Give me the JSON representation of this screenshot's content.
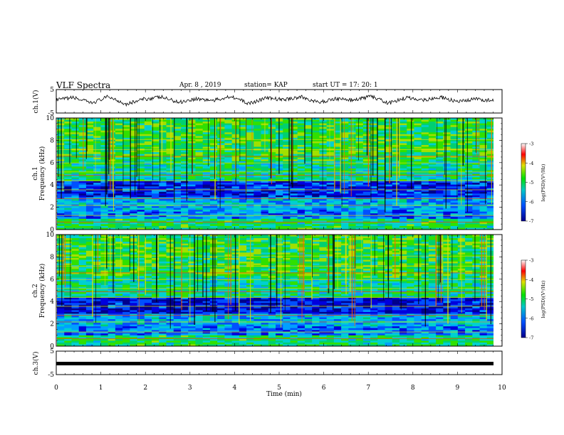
{
  "header": {
    "title": "VLF Spectra",
    "date": "Apr. 8 , 2019",
    "station": "station= KAP",
    "start": "start UT = 17: 20: 1"
  },
  "chart_data": [
    {
      "type": "line",
      "panel": "ch1-waveform",
      "ylabel": "ch.1(V)",
      "ylim": [
        -5,
        5
      ],
      "yticks": [
        "5",
        "-5"
      ],
      "xlim": [
        0,
        10
      ],
      "series": [
        {
          "values": [
            0.5,
            1.6,
            -0.8,
            2.0,
            -1.2,
            0.9,
            1.8,
            -0.4,
            1.1,
            0.3,
            2.2,
            -1.0,
            1.4,
            0.7,
            1.9,
            -0.6,
            1.2,
            0.4,
            2.1,
            -0.9,
            1.5,
            0.6,
            1.7,
            -0.3,
            1.0,
            0.2
          ]
        }
      ]
    },
    {
      "type": "heatmap",
      "panel": "ch1-spectrogram",
      "ylabel": "ch.1 Frequency (kHz)",
      "xlim": [
        0,
        10
      ],
      "ylim": [
        0,
        10
      ],
      "yticks": [
        "0",
        "2",
        "4",
        "6",
        "8",
        "10"
      ],
      "colorbar": {
        "label": "log(PSD)(V²/Hz)",
        "range": [
          -7,
          -3
        ],
        "ticks": [
          "-3",
          "-4",
          "-5",
          "-6",
          "-7"
        ]
      }
    },
    {
      "type": "heatmap",
      "panel": "ch2-spectrogram",
      "ylabel": "ch.2 Frequency (kHz)",
      "xlim": [
        0,
        10
      ],
      "ylim": [
        0,
        10
      ],
      "yticks": [
        "0",
        "2",
        "4",
        "6",
        "8",
        "10"
      ],
      "colorbar": {
        "label": "log(PSD)(V²/Hz)",
        "range": [
          -7,
          -3
        ],
        "ticks": [
          "-3",
          "-4",
          "-5",
          "-6",
          "-7"
        ]
      }
    },
    {
      "type": "line",
      "panel": "ch3-waveform",
      "ylabel": "ch.3(V)",
      "ylim": [
        -5,
        5
      ],
      "yticks": [
        "5",
        "-5"
      ],
      "xlim": [
        0,
        10
      ],
      "series": [
        {
          "values": [
            0,
            0
          ]
        }
      ]
    }
  ],
  "xaxis": {
    "label": "Time (min)",
    "ticks": [
      "0",
      "1",
      "2",
      "3",
      "4",
      "5",
      "6",
      "7",
      "8",
      "9",
      "10"
    ]
  }
}
